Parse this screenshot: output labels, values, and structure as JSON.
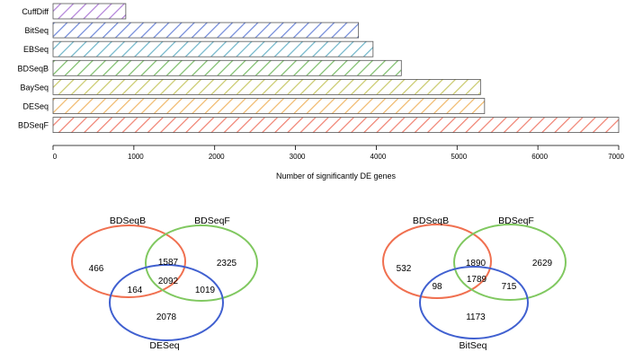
{
  "chart_data": [
    {
      "type": "bar",
      "orientation": "horizontal",
      "categories": [
        "CuffDiff",
        "BitSeq",
        "EBSeq",
        "BDSeqB",
        "BaySeq",
        "DESeq",
        "BDSeqF"
      ],
      "values": [
        900,
        3780,
        3960,
        4310,
        5290,
        5340,
        7000
      ],
      "colors": [
        "#b07fd8",
        "#6f88d9",
        "#6fb5c9",
        "#7cbd6a",
        "#c9c96a",
        "#f0b86a",
        "#f08070"
      ],
      "title": "",
      "xlabel": "Number of significantly DE genes",
      "ylabel": "",
      "xlim": [
        0,
        7000
      ],
      "xticks": [
        0,
        1000,
        2000,
        3000,
        4000,
        5000,
        6000,
        7000
      ],
      "xtick_labels": [
        "0",
        "1000",
        "2000",
        "3000",
        "4000",
        "5000",
        "6000",
        "7000"
      ],
      "fill_pattern": "diagonal hatch",
      "grid": false,
      "legend": "none"
    },
    {
      "type": "venn",
      "sets": [
        {
          "name": "BDSeqB",
          "color": "#f07050"
        },
        {
          "name": "BDSeqF",
          "color": "#80c860"
        },
        {
          "name": "DESeq",
          "color": "#4060d0"
        }
      ],
      "regions": {
        "BDSeqB_only": 466,
        "BDSeqF_only": 2325,
        "DESeq_only": 2078,
        "BDSeqB_BDSeqF": 1587,
        "BDSeqB_DESeq": 164,
        "BDSeqF_DESeq": 1019,
        "all_three": 2092
      }
    },
    {
      "type": "venn",
      "sets": [
        {
          "name": "BDSeqB",
          "color": "#f07050"
        },
        {
          "name": "BDSeqF",
          "color": "#80c860"
        },
        {
          "name": "BitSeq",
          "color": "#4060d0"
        }
      ],
      "regions": {
        "BDSeqB_only": 532,
        "BDSeqF_only": 2629,
        "BitSeq_only": 1173,
        "BDSeqB_BDSeqF": 1890,
        "BDSeqB_BitSeq": 98,
        "BDSeqF_BitSeq": 715,
        "all_three": 1789
      }
    }
  ]
}
